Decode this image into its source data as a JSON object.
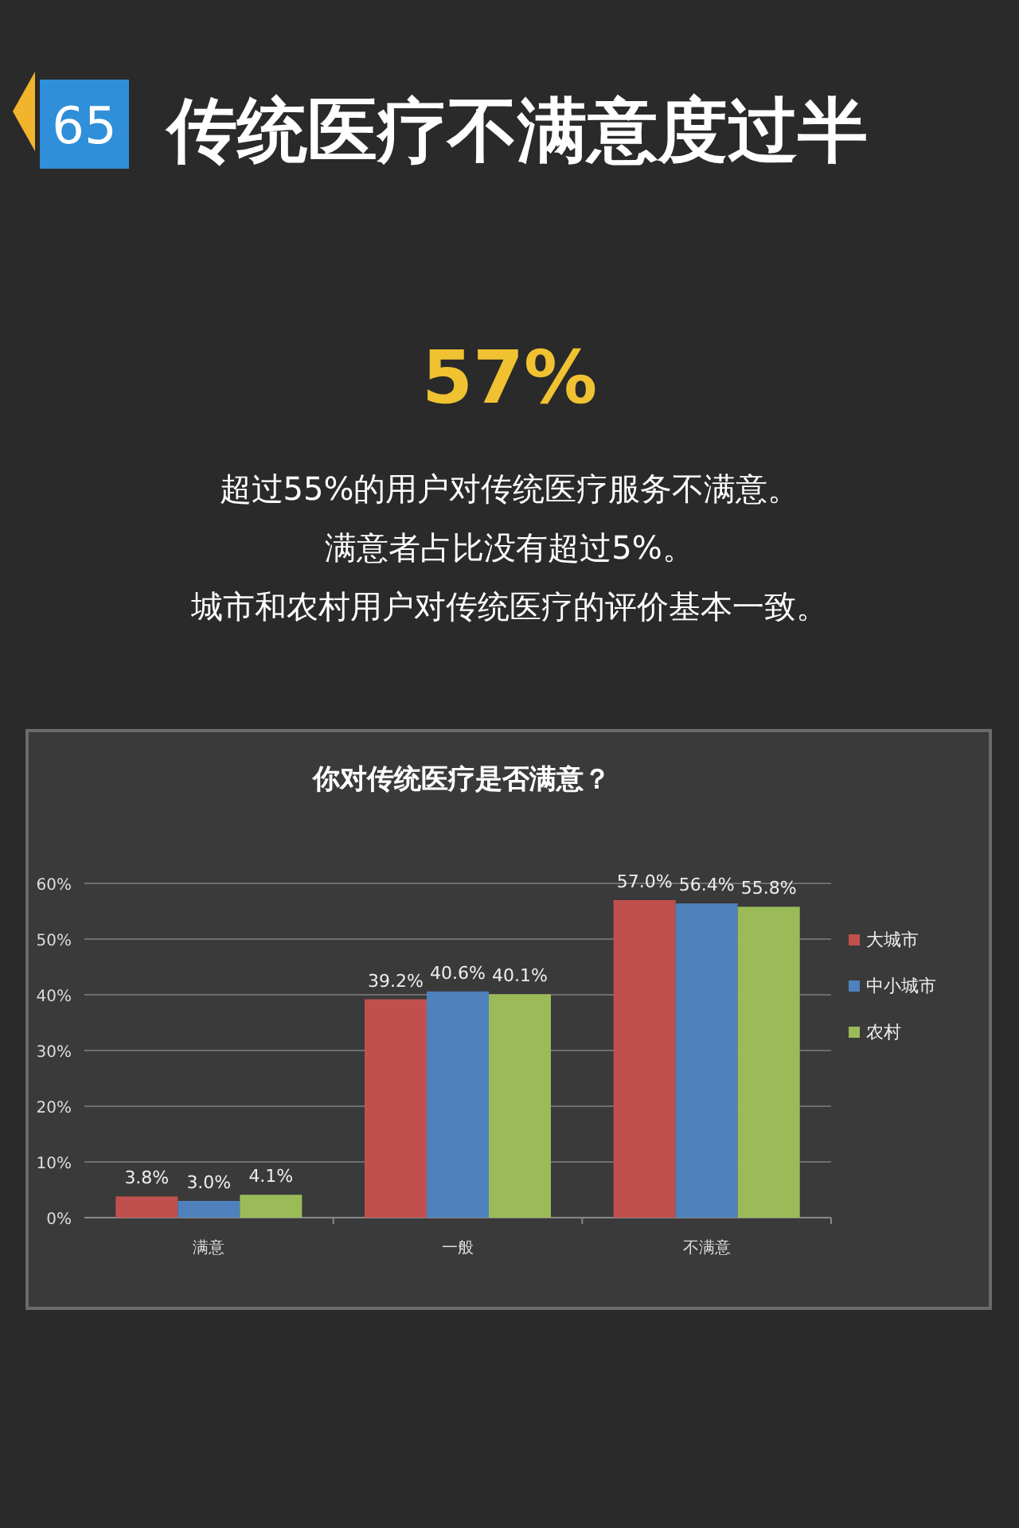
{
  "chart_data": {
    "type": "bar",
    "title": "你对传统医疗是否满意？",
    "annotations": [
      "65",
      "传统医疗不满意度过半",
      "57%",
      "超过55%的用户对传统医疗服务不满意。",
      "满意者占比没有超过5%。",
      "城市和农村用户对传统医疗的评价基本一致。"
    ],
    "categories": [
      "满意",
      "一般",
      "不满意"
    ],
    "series": [
      {
        "name": "大城市",
        "color": "#c0504d",
        "values": [
          3.8,
          39.2,
          57.0
        ],
        "value_labels": [
          "3.8%",
          "39.2%",
          "57.0%"
        ]
      },
      {
        "name": "中小城市",
        "color": "#4f81bd",
        "values": [
          3.0,
          40.6,
          56.4
        ],
        "value_labels": [
          "3.0%",
          "40.6%",
          "56.4%"
        ]
      },
      {
        "name": "农村",
        "color": "#9bbb59",
        "values": [
          4.1,
          40.1,
          55.8
        ],
        "value_labels": [
          "4.1%",
          "40.1%",
          "55.8%"
        ]
      }
    ],
    "ylim": [
      0,
      60
    ],
    "yticks": [
      {
        "value": 0,
        "label": "0%"
      },
      {
        "value": 10,
        "label": "10%"
      },
      {
        "value": 20,
        "label": "20%"
      },
      {
        "value": 30,
        "label": "30%"
      },
      {
        "value": 40,
        "label": "40%"
      },
      {
        "value": 50,
        "label": "50%"
      },
      {
        "value": 60,
        "label": "60%"
      }
    ],
    "grid": "y",
    "legend": "right"
  }
}
